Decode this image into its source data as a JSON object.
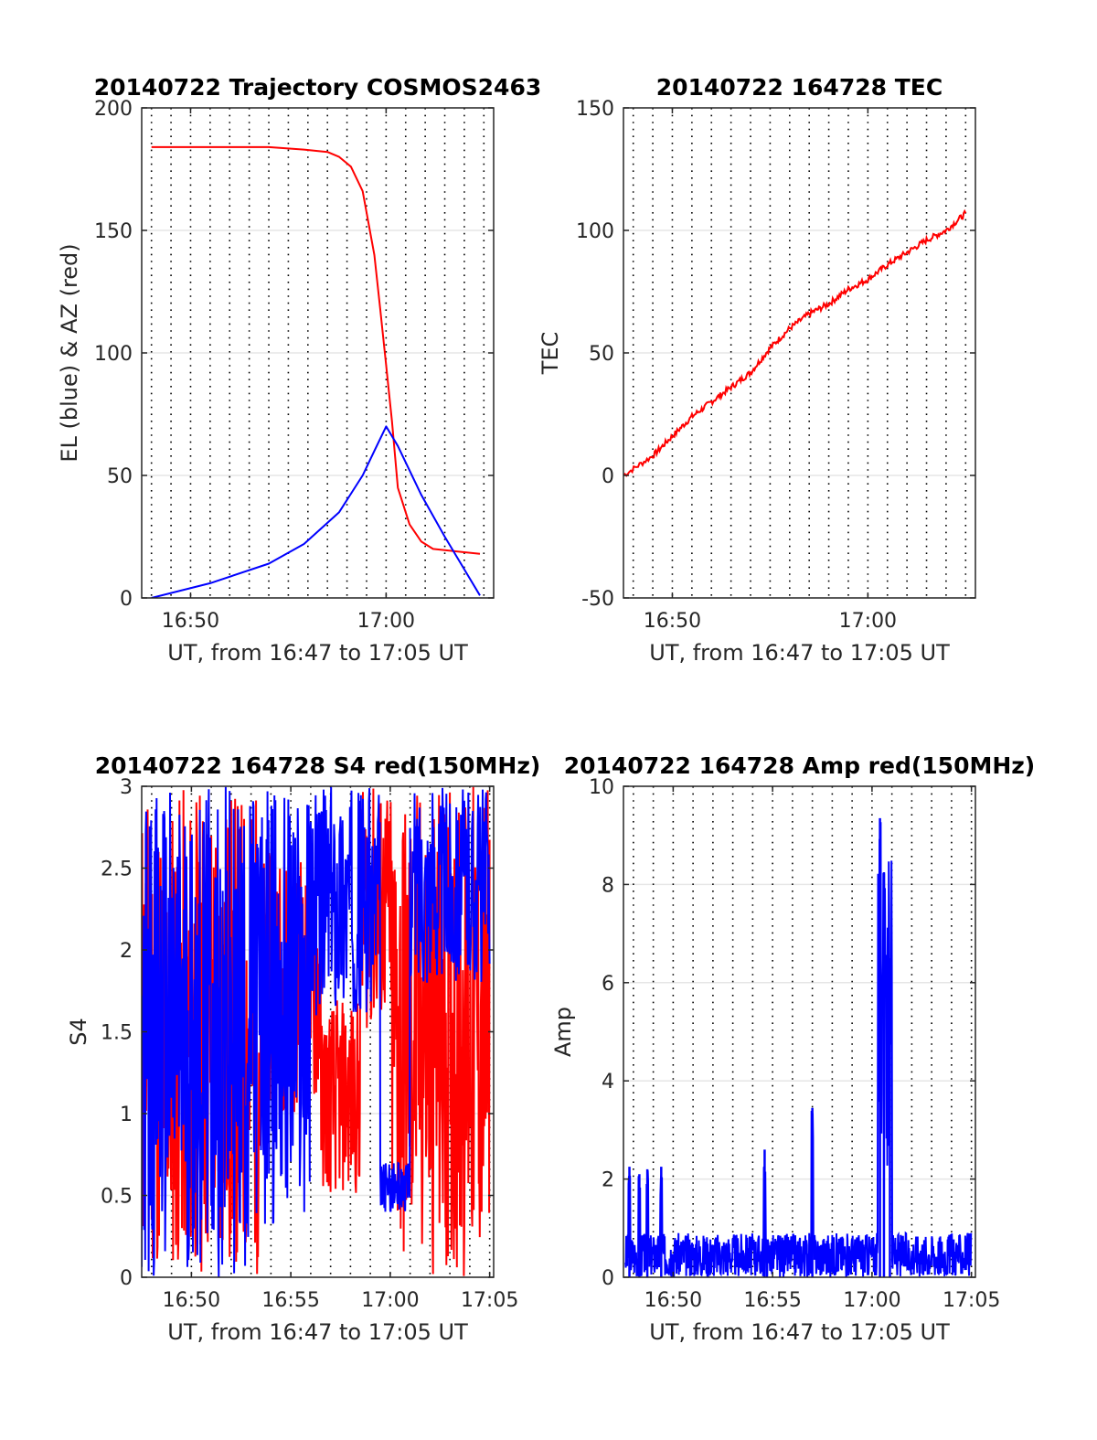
{
  "chart_data": [
    {
      "type": "line",
      "title": "20140722 Trajectory COSMOS2463",
      "xlabel": "UT, from 16:47 to 17:05 UT",
      "ylabel": "EL (blue) & AZ (red)",
      "xlim_min": [
        16.8,
        17.08
      ],
      "xticks": [
        "16:50",
        "17:00"
      ],
      "ylim": [
        0,
        200
      ],
      "yticks": [
        "0",
        "50",
        "100",
        "150",
        "200"
      ],
      "grid": "dotted vertical every minute, light horizontal",
      "series": [
        {
          "color": "#ff0000",
          "x_min": [
            16.8,
            16.9,
            16.93,
            16.95,
            16.96,
            16.97,
            16.98,
            16.99,
            16.995,
            17.0,
            17.005,
            17.01,
            17.02,
            17.03,
            17.04,
            17.08
          ],
          "y": [
            184,
            184,
            183,
            182,
            180,
            176,
            166,
            140,
            118,
            95,
            72,
            45,
            30,
            23,
            20,
            18
          ]
        },
        {
          "color": "#0000ff",
          "x_min": [
            16.8,
            16.85,
            16.9,
            16.93,
            16.96,
            16.98,
            16.99,
            17.0,
            17.01,
            17.03,
            17.05,
            17.08
          ],
          "y": [
            0,
            6,
            14,
            22,
            35,
            50,
            60,
            70,
            62,
            42,
            25,
            1
          ]
        }
      ]
    },
    {
      "type": "line",
      "title": "20140722 164728 TEC",
      "xlabel": "UT, from 16:47 to 17:05 UT",
      "ylabel": "TEC",
      "xticks": [
        "16:50",
        "17:00"
      ],
      "ylim": [
        -50,
        150
      ],
      "yticks": [
        "-50",
        "0",
        "50",
        "100",
        "150"
      ],
      "series": [
        {
          "color": "#ff0000",
          "x_min": [
            47.5,
            49,
            50,
            51,
            52,
            53,
            54,
            55,
            56,
            57,
            58,
            59,
            60,
            61,
            62,
            63,
            64,
            65
          ],
          "y": [
            0,
            8,
            16,
            24,
            30,
            36,
            42,
            52,
            60,
            66,
            70,
            76,
            80,
            86,
            91,
            96,
            100,
            107
          ]
        }
      ]
    },
    {
      "type": "line",
      "title": "20140722 164728 S4 red(150MHz)",
      "xlabel": "UT, from 16:47 to 17:05 UT",
      "ylabel": "S4",
      "xticks": [
        "16:50",
        "16:55",
        "17:00",
        "17:05"
      ],
      "ylim": [
        0,
        3
      ],
      "yticks": [
        "0",
        "0.5",
        "1",
        "1.5",
        "2",
        "2.5",
        "3"
      ],
      "series": [
        {
          "color": "#ff0000",
          "x_min": [
            47.5,
            65
          ],
          "y_range": [
            0,
            3
          ]
        },
        {
          "color": "#0000ff",
          "x_min": [
            47.5,
            65
          ],
          "y_range": [
            0,
            3
          ]
        }
      ]
    },
    {
      "type": "line",
      "title": "20140722 164728 Amp red(150MHz)",
      "xlabel": "UT, from 16:47 to 17:05 UT",
      "ylabel": "Amp",
      "xticks": [
        "16:50",
        "16:55",
        "17:00",
        "17:05"
      ],
      "ylim": [
        0,
        10
      ],
      "yticks": [
        "0",
        "2",
        "4",
        "6",
        "8",
        "10"
      ],
      "series": [
        {
          "color": "#0000ff",
          "baseline": 0.5,
          "spikes": [
            {
              "x_min": 47.8,
              "y": 2.25
            },
            {
              "x_min": 48.3,
              "y": 2.1
            },
            {
              "x_min": 48.7,
              "y": 2.2
            },
            {
              "x_min": 49.4,
              "y": 2.25
            },
            {
              "x_min": 54.6,
              "y": 2.6
            },
            {
              "x_min": 57.0,
              "y": 3.45
            },
            {
              "x_min": 60.4,
              "y": 9.35
            },
            {
              "x_min": 60.6,
              "y": 8.25
            },
            {
              "x_min": 60.9,
              "y": 6.5
            }
          ]
        }
      ]
    }
  ]
}
